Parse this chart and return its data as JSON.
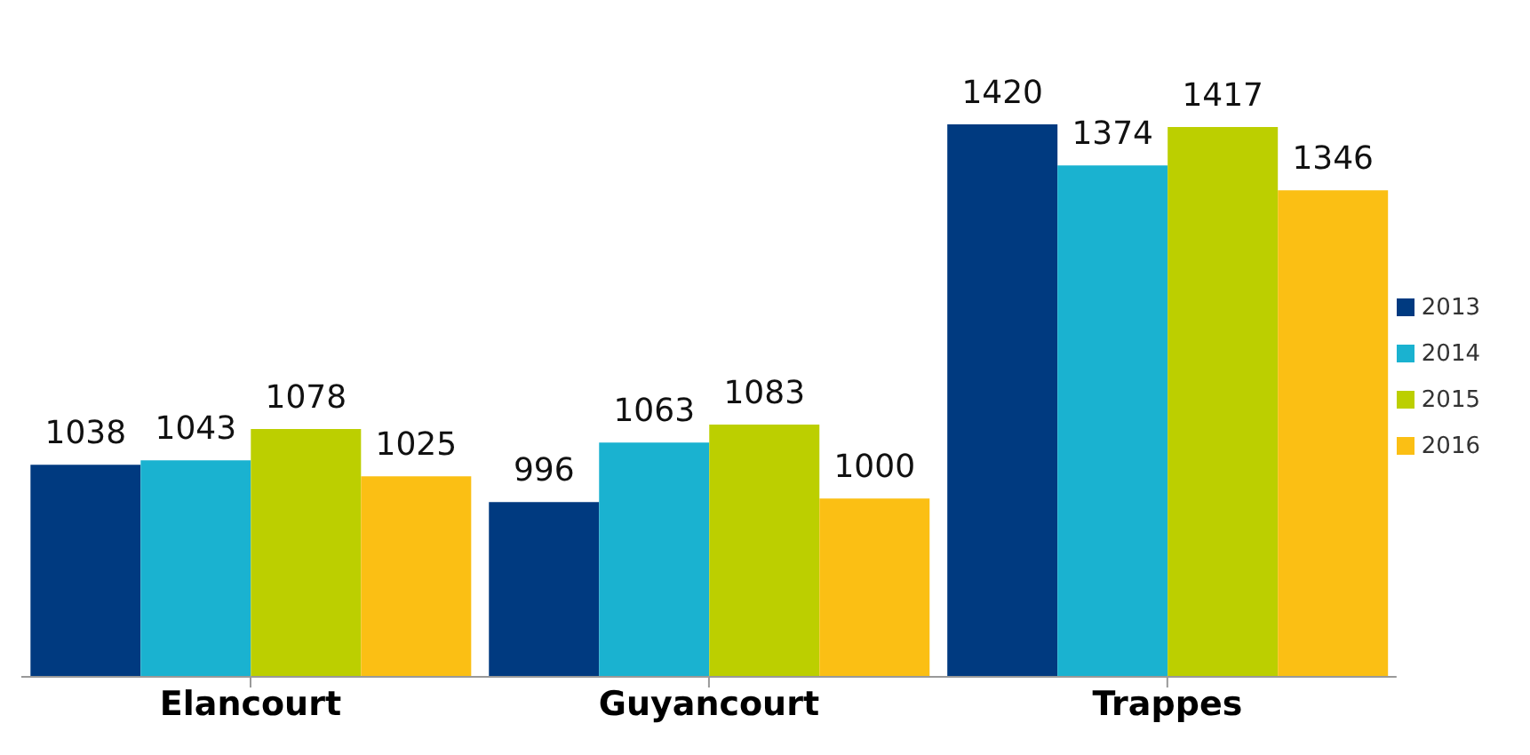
{
  "chart_data": {
    "type": "bar",
    "categories": [
      "Elancourt",
      "Guyancourt",
      "Trappes"
    ],
    "series": [
      {
        "name": "2013",
        "color": "#003a80",
        "values": [
          1038,
          996,
          1420
        ]
      },
      {
        "name": "2014",
        "color": "#1ab2d0",
        "values": [
          1043,
          1063,
          1374
        ]
      },
      {
        "name": "2015",
        "color": "#bccf00",
        "values": [
          1078,
          1083,
          1417
        ]
      },
      {
        "name": "2016",
        "color": "#fbbf14",
        "values": [
          1025,
          1000,
          1346
        ]
      }
    ],
    "ylim": [
      800,
      1420
    ],
    "tick_labels": "x",
    "data_labels": true,
    "legend": "right",
    "grid": false
  }
}
